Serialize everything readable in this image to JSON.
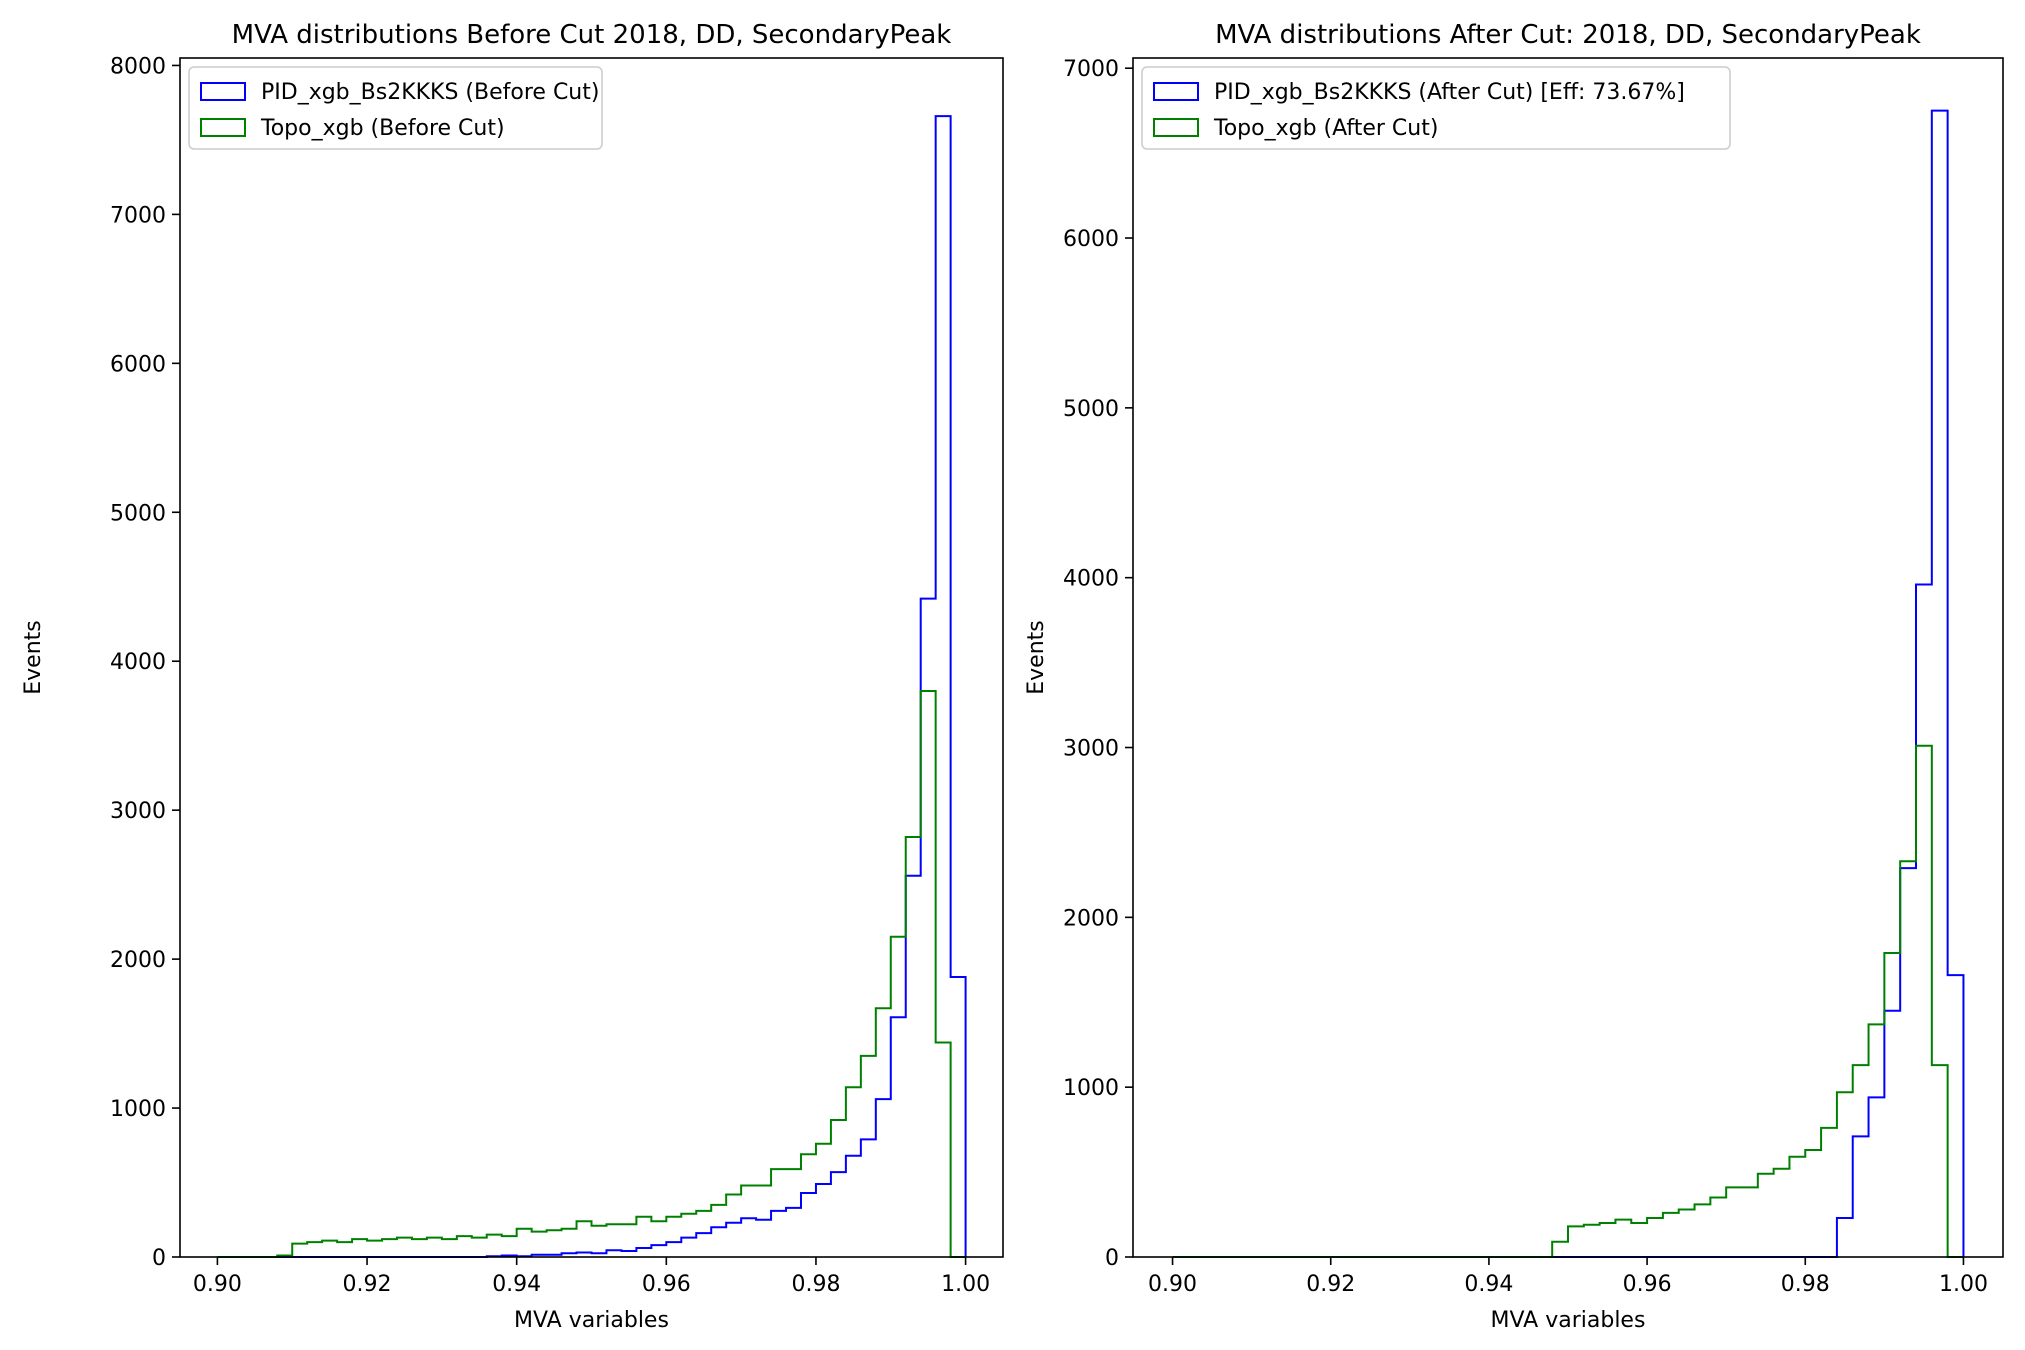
{
  "figure": {
    "background": "#ffffff"
  },
  "chart_data": [
    {
      "type": "histogram-step",
      "title": "MVA distributions Before Cut 2018, DD, SecondaryPeak",
      "xlabel": "MVA variables",
      "ylabel": "Events",
      "xlim": [
        0.895,
        1.005
      ],
      "ylim": [
        0,
        8050
      ],
      "xticks": [
        0.9,
        0.92,
        0.94,
        0.96,
        0.98,
        1.0
      ],
      "xtick_labels": [
        "0.90",
        "0.92",
        "0.94",
        "0.96",
        "0.98",
        "1.00"
      ],
      "yticks": [
        0,
        1000,
        2000,
        3000,
        4000,
        5000,
        6000,
        7000,
        8000
      ],
      "ytick_labels": [
        "0",
        "1000",
        "2000",
        "3000",
        "4000",
        "5000",
        "6000",
        "7000",
        "8000"
      ],
      "legend_position": "top-left",
      "bin_edges": [
        0.9,
        0.902,
        0.904,
        0.906,
        0.908,
        0.91,
        0.912,
        0.914,
        0.916,
        0.918,
        0.92,
        0.922,
        0.924,
        0.926,
        0.928,
        0.93,
        0.932,
        0.934,
        0.936,
        0.938,
        0.94,
        0.942,
        0.944,
        0.946,
        0.948,
        0.95,
        0.952,
        0.954,
        0.956,
        0.958,
        0.96,
        0.962,
        0.964,
        0.966,
        0.968,
        0.97,
        0.972,
        0.974,
        0.976,
        0.978,
        0.98,
        0.982,
        0.984,
        0.986,
        0.988,
        0.99,
        0.992,
        0.994,
        0.996,
        0.998,
        1.0
      ],
      "series": [
        {
          "name": "PID_xgb_Bs2KKKS (Before Cut)",
          "color": "#0000ff",
          "values": [
            0,
            0,
            0,
            0,
            0,
            0,
            0,
            0,
            0,
            0,
            0,
            0,
            0,
            0,
            0,
            0,
            0,
            0,
            5,
            10,
            5,
            15,
            15,
            25,
            30,
            25,
            45,
            40,
            60,
            80,
            100,
            130,
            160,
            200,
            230,
            260,
            250,
            310,
            330,
            430,
            490,
            570,
            680,
            790,
            1060,
            1610,
            2560,
            4420,
            7660,
            1880
          ]
        },
        {
          "name": "Topo_xgb (Before Cut)",
          "color": "#008000",
          "values": [
            0,
            0,
            0,
            0,
            10,
            90,
            100,
            110,
            100,
            120,
            110,
            120,
            130,
            120,
            130,
            120,
            140,
            130,
            150,
            140,
            190,
            170,
            180,
            190,
            240,
            210,
            220,
            220,
            270,
            240,
            270,
            290,
            310,
            350,
            420,
            480,
            480,
            590,
            590,
            690,
            760,
            920,
            1140,
            1350,
            1670,
            2150,
            2820,
            3800,
            1440,
            0
          ]
        }
      ]
    },
    {
      "type": "histogram-step",
      "title": "MVA distributions After Cut: 2018, DD, SecondaryPeak",
      "xlabel": "MVA variables",
      "ylabel": "Events",
      "xlim": [
        0.895,
        1.005
      ],
      "ylim": [
        0,
        7060
      ],
      "xticks": [
        0.9,
        0.92,
        0.94,
        0.96,
        0.98,
        1.0
      ],
      "xtick_labels": [
        "0.90",
        "0.92",
        "0.94",
        "0.96",
        "0.98",
        "1.00"
      ],
      "yticks": [
        0,
        1000,
        2000,
        3000,
        4000,
        5000,
        6000,
        7000
      ],
      "ytick_labels": [
        "0",
        "1000",
        "2000",
        "3000",
        "4000",
        "5000",
        "6000",
        "7000"
      ],
      "legend_position": "top-left",
      "bin_edges": [
        0.9,
        0.902,
        0.904,
        0.906,
        0.908,
        0.91,
        0.912,
        0.914,
        0.916,
        0.918,
        0.92,
        0.922,
        0.924,
        0.926,
        0.928,
        0.93,
        0.932,
        0.934,
        0.936,
        0.938,
        0.94,
        0.942,
        0.944,
        0.946,
        0.948,
        0.95,
        0.952,
        0.954,
        0.956,
        0.958,
        0.96,
        0.962,
        0.964,
        0.966,
        0.968,
        0.97,
        0.972,
        0.974,
        0.976,
        0.978,
        0.98,
        0.982,
        0.984,
        0.986,
        0.988,
        0.99,
        0.992,
        0.994,
        0.996,
        0.998,
        1.0
      ],
      "series": [
        {
          "name": "PID_xgb_Bs2KKKS (After Cut) [Eff: 73.67%]",
          "color": "#0000ff",
          "values": [
            0,
            0,
            0,
            0,
            0,
            0,
            0,
            0,
            0,
            0,
            0,
            0,
            0,
            0,
            0,
            0,
            0,
            0,
            0,
            0,
            0,
            0,
            0,
            0,
            0,
            0,
            0,
            0,
            0,
            0,
            0,
            0,
            0,
            0,
            0,
            0,
            0,
            0,
            0,
            0,
            0,
            0,
            230,
            710,
            940,
            1450,
            2290,
            3960,
            6750,
            1660
          ]
        },
        {
          "name": "Topo_xgb (After Cut)",
          "color": "#008000",
          "values": [
            0,
            0,
            0,
            0,
            0,
            0,
            0,
            0,
            0,
            0,
            0,
            0,
            0,
            0,
            0,
            0,
            0,
            0,
            0,
            0,
            0,
            0,
            0,
            0,
            90,
            180,
            190,
            200,
            220,
            200,
            230,
            260,
            280,
            310,
            350,
            410,
            410,
            490,
            520,
            590,
            630,
            760,
            970,
            1130,
            1370,
            1790,
            2330,
            3010,
            1130,
            0
          ]
        }
      ]
    }
  ]
}
